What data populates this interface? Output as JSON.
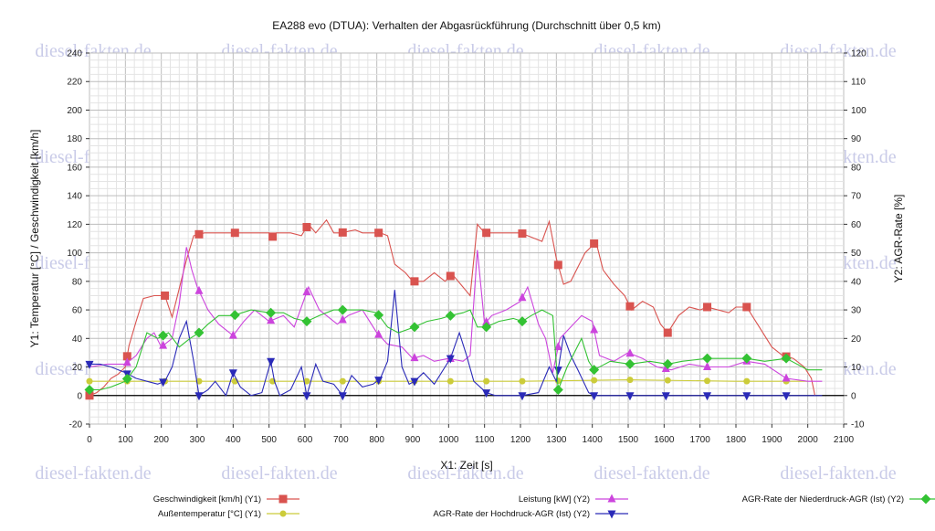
{
  "watermark": "diesel-fakten.de",
  "chart_data": {
    "type": "line",
    "title": "EA288 evo (DTUA): Verhalten der Abgasrückführung (Durchschnitt über 0,5 km)",
    "xlabel": "X1: Zeit [s]",
    "y1label": "Y1: Temperatur [°C] / Geschwindigkeit [km/h]",
    "y2label": "Y2: AGR-Rate [%]",
    "xlim": [
      0,
      2100
    ],
    "y1lim": [
      -20,
      240
    ],
    "y2lim": [
      -10,
      120
    ],
    "x_ticks": [
      0,
      100,
      200,
      300,
      400,
      500,
      600,
      700,
      800,
      900,
      1000,
      1100,
      1200,
      1300,
      1400,
      1500,
      1600,
      1700,
      1800,
      1900,
      2000,
      2100
    ],
    "y1_ticks": [
      -20,
      0,
      20,
      40,
      60,
      80,
      100,
      120,
      140,
      160,
      180,
      200,
      220,
      240
    ],
    "y2_ticks": [
      -10,
      0,
      10,
      20,
      30,
      40,
      50,
      60,
      70,
      80,
      90,
      100,
      110,
      120
    ],
    "grid": true,
    "legend_position": "bottom",
    "series": [
      {
        "name": "Geschwindigkeit [km/h] (Y1)",
        "axis": "y1",
        "color": "#d9534f",
        "marker": "square",
        "legend_slot": "left-1",
        "points": [
          [
            0,
            0
          ],
          [
            20,
            2
          ],
          [
            40,
            6
          ],
          [
            60,
            12
          ],
          [
            80,
            15
          ],
          [
            100,
            20
          ],
          [
            110,
            35
          ],
          [
            130,
            52
          ],
          [
            150,
            68
          ],
          [
            180,
            70
          ],
          [
            210,
            70
          ],
          [
            230,
            55
          ],
          [
            250,
            75
          ],
          [
            270,
            95
          ],
          [
            290,
            112
          ],
          [
            320,
            114
          ],
          [
            400,
            114
          ],
          [
            500,
            114
          ],
          [
            505,
            110
          ],
          [
            520,
            114
          ],
          [
            560,
            114
          ],
          [
            590,
            112
          ],
          [
            610,
            120
          ],
          [
            630,
            114
          ],
          [
            660,
            123
          ],
          [
            680,
            114
          ],
          [
            700,
            114
          ],
          [
            740,
            116
          ],
          [
            760,
            114
          ],
          [
            810,
            114
          ],
          [
            830,
            112
          ],
          [
            850,
            92
          ],
          [
            880,
            86
          ],
          [
            900,
            80
          ],
          [
            930,
            80
          ],
          [
            960,
            86
          ],
          [
            990,
            80
          ],
          [
            1010,
            85
          ],
          [
            1040,
            76
          ],
          [
            1060,
            70
          ],
          [
            1080,
            120
          ],
          [
            1100,
            114
          ],
          [
            1200,
            114
          ],
          [
            1240,
            110
          ],
          [
            1260,
            108
          ],
          [
            1280,
            122
          ],
          [
            1300,
            96
          ],
          [
            1320,
            78
          ],
          [
            1340,
            80
          ],
          [
            1360,
            90
          ],
          [
            1380,
            100
          ],
          [
            1400,
            105
          ],
          [
            1410,
            108
          ],
          [
            1430,
            88
          ],
          [
            1460,
            78
          ],
          [
            1490,
            70
          ],
          [
            1510,
            60
          ],
          [
            1540,
            66
          ],
          [
            1570,
            62
          ],
          [
            1590,
            50
          ],
          [
            1610,
            44
          ],
          [
            1640,
            56
          ],
          [
            1670,
            62
          ],
          [
            1700,
            60
          ],
          [
            1720,
            62
          ],
          [
            1780,
            58
          ],
          [
            1800,
            62
          ],
          [
            1830,
            62
          ],
          [
            1860,
            50
          ],
          [
            1900,
            34
          ],
          [
            1930,
            28
          ],
          [
            1960,
            26
          ],
          [
            1990,
            20
          ],
          [
            2010,
            12
          ],
          [
            2020,
            0
          ]
        ],
        "markers_at": [
          0,
          105,
          210,
          305,
          405,
          510,
          605,
          705,
          805,
          905,
          1005,
          1105,
          1205,
          1305,
          1405,
          1505,
          1610,
          1720,
          1830,
          1940
        ]
      },
      {
        "name": "Außentemperatur [°C] (Y1)",
        "axis": "y1",
        "color": "#cccc3a",
        "marker": "circle",
        "legend_slot": "left-2",
        "points": [
          [
            0,
            10
          ],
          [
            300,
            10
          ],
          [
            600,
            10
          ],
          [
            900,
            10
          ],
          [
            1200,
            10
          ],
          [
            1500,
            11
          ],
          [
            1800,
            10
          ],
          [
            2000,
            10
          ]
        ],
        "markers_at": [
          0,
          105,
          210,
          305,
          405,
          510,
          605,
          705,
          805,
          905,
          1005,
          1105,
          1205,
          1305,
          1405,
          1505,
          1610,
          1720,
          1830,
          1940
        ]
      },
      {
        "name": "Leistung [kW] (Y2)",
        "axis": "y2",
        "color": "#cc44dd",
        "marker": "triangle-up",
        "legend_slot": "mid-1",
        "points": [
          [
            0,
            10
          ],
          [
            50,
            11
          ],
          [
            100,
            11
          ],
          [
            130,
            14
          ],
          [
            160,
            20
          ],
          [
            180,
            22
          ],
          [
            200,
            17
          ],
          [
            230,
            20
          ],
          [
            250,
            32
          ],
          [
            270,
            52
          ],
          [
            285,
            44
          ],
          [
            300,
            38
          ],
          [
            330,
            30
          ],
          [
            360,
            25
          ],
          [
            400,
            21
          ],
          [
            430,
            26
          ],
          [
            460,
            30
          ],
          [
            500,
            26
          ],
          [
            540,
            28
          ],
          [
            570,
            24
          ],
          [
            610,
            38
          ],
          [
            640,
            30
          ],
          [
            660,
            28
          ],
          [
            690,
            25
          ],
          [
            720,
            28
          ],
          [
            760,
            30
          ],
          [
            800,
            22
          ],
          [
            830,
            18
          ],
          [
            870,
            17
          ],
          [
            900,
            13
          ],
          [
            930,
            14
          ],
          [
            960,
            12
          ],
          [
            1000,
            13
          ],
          [
            1040,
            12
          ],
          [
            1060,
            14
          ],
          [
            1080,
            51
          ],
          [
            1100,
            25
          ],
          [
            1120,
            28
          ],
          [
            1160,
            30
          ],
          [
            1200,
            33
          ],
          [
            1220,
            38
          ],
          [
            1250,
            25
          ],
          [
            1270,
            20
          ],
          [
            1290,
            8
          ],
          [
            1310,
            20
          ],
          [
            1340,
            24
          ],
          [
            1370,
            28
          ],
          [
            1400,
            26
          ],
          [
            1420,
            14
          ],
          [
            1460,
            12
          ],
          [
            1500,
            15
          ],
          [
            1540,
            13
          ],
          [
            1580,
            10
          ],
          [
            1620,
            9
          ],
          [
            1670,
            11
          ],
          [
            1720,
            10
          ],
          [
            1780,
            10
          ],
          [
            1830,
            12
          ],
          [
            1880,
            11
          ],
          [
            1940,
            6
          ],
          [
            2000,
            5
          ],
          [
            2040,
            5
          ]
        ],
        "markers_at": [
          105,
          205,
          305,
          400,
          505,
          605,
          705,
          805,
          905,
          1005,
          1105,
          1205,
          1305,
          1405,
          1505,
          1605,
          1720,
          1830,
          1940
        ]
      },
      {
        "name": "AGR-Rate der Hochdruck-AGR (Ist) (Y2)",
        "axis": "y2",
        "color": "#2a2ab8",
        "marker": "triangle-down",
        "legend_slot": "mid-2",
        "points": [
          [
            0,
            11
          ],
          [
            30,
            11
          ],
          [
            60,
            10
          ],
          [
            100,
            8
          ],
          [
            130,
            6
          ],
          [
            160,
            5
          ],
          [
            190,
            4
          ],
          [
            210,
            5
          ],
          [
            230,
            10
          ],
          [
            250,
            20
          ],
          [
            270,
            26
          ],
          [
            290,
            12
          ],
          [
            305,
            0
          ],
          [
            330,
            2
          ],
          [
            350,
            5
          ],
          [
            380,
            0
          ],
          [
            400,
            8
          ],
          [
            420,
            3
          ],
          [
            450,
            0
          ],
          [
            480,
            1
          ],
          [
            505,
            12
          ],
          [
            515,
            5
          ],
          [
            530,
            0
          ],
          [
            560,
            2
          ],
          [
            590,
            10
          ],
          [
            605,
            0
          ],
          [
            630,
            11
          ],
          [
            650,
            5
          ],
          [
            680,
            4
          ],
          [
            705,
            0
          ],
          [
            730,
            7
          ],
          [
            760,
            3
          ],
          [
            790,
            4
          ],
          [
            810,
            6
          ],
          [
            830,
            12
          ],
          [
            850,
            37
          ],
          [
            870,
            10
          ],
          [
            890,
            4
          ],
          [
            905,
            5
          ],
          [
            930,
            8
          ],
          [
            960,
            4
          ],
          [
            990,
            10
          ],
          [
            1005,
            13
          ],
          [
            1030,
            22
          ],
          [
            1050,
            14
          ],
          [
            1070,
            5
          ],
          [
            1105,
            1
          ],
          [
            1130,
            0
          ],
          [
            1170,
            0
          ],
          [
            1205,
            0
          ],
          [
            1250,
            1
          ],
          [
            1280,
            10
          ],
          [
            1300,
            5
          ],
          [
            1320,
            21
          ],
          [
            1340,
            14
          ],
          [
            1360,
            9
          ],
          [
            1390,
            1
          ],
          [
            1405,
            0
          ],
          [
            1500,
            0
          ],
          [
            1600,
            0
          ],
          [
            1720,
            0
          ],
          [
            1830,
            0
          ],
          [
            1940,
            0
          ],
          [
            2040,
            0
          ]
        ],
        "markers_at": [
          0,
          105,
          205,
          305,
          400,
          505,
          605,
          705,
          805,
          905,
          1005,
          1105,
          1205,
          1305,
          1405,
          1505,
          1605,
          1720,
          1830,
          1940
        ]
      },
      {
        "name": "AGR-Rate der Niederdruck-AGR (Ist) (Y2)",
        "axis": "y2",
        "color": "#33c233",
        "marker": "diamond",
        "legend_slot": "right-1",
        "points": [
          [
            0,
            2
          ],
          [
            30,
            2
          ],
          [
            60,
            3
          ],
          [
            100,
            5
          ],
          [
            130,
            10
          ],
          [
            160,
            22
          ],
          [
            190,
            20
          ],
          [
            220,
            22
          ],
          [
            250,
            17
          ],
          [
            280,
            20
          ],
          [
            305,
            22
          ],
          [
            330,
            25
          ],
          [
            360,
            28
          ],
          [
            400,
            28
          ],
          [
            450,
            30
          ],
          [
            500,
            29
          ],
          [
            540,
            29
          ],
          [
            570,
            27
          ],
          [
            605,
            26
          ],
          [
            640,
            28
          ],
          [
            680,
            30
          ],
          [
            720,
            30
          ],
          [
            760,
            30
          ],
          [
            800,
            29
          ],
          [
            830,
            24
          ],
          [
            860,
            22
          ],
          [
            905,
            24
          ],
          [
            940,
            26
          ],
          [
            980,
            27
          ],
          [
            1005,
            28
          ],
          [
            1040,
            29
          ],
          [
            1060,
            30
          ],
          [
            1080,
            24
          ],
          [
            1105,
            24
          ],
          [
            1140,
            26
          ],
          [
            1180,
            27
          ],
          [
            1205,
            26
          ],
          [
            1230,
            28
          ],
          [
            1260,
            30
          ],
          [
            1290,
            28
          ],
          [
            1305,
            2
          ],
          [
            1330,
            10
          ],
          [
            1370,
            20
          ],
          [
            1390,
            12
          ],
          [
            1405,
            9
          ],
          [
            1450,
            12
          ],
          [
            1505,
            11
          ],
          [
            1560,
            12
          ],
          [
            1610,
            11
          ],
          [
            1650,
            12
          ],
          [
            1720,
            13
          ],
          [
            1780,
            13
          ],
          [
            1830,
            13
          ],
          [
            1880,
            12
          ],
          [
            1940,
            13
          ],
          [
            2000,
            9
          ],
          [
            2040,
            9
          ]
        ],
        "markers_at": [
          0,
          105,
          205,
          305,
          405,
          505,
          605,
          705,
          805,
          905,
          1005,
          1105,
          1205,
          1305,
          1405,
          1505,
          1610,
          1720,
          1830,
          1940
        ]
      }
    ]
  }
}
